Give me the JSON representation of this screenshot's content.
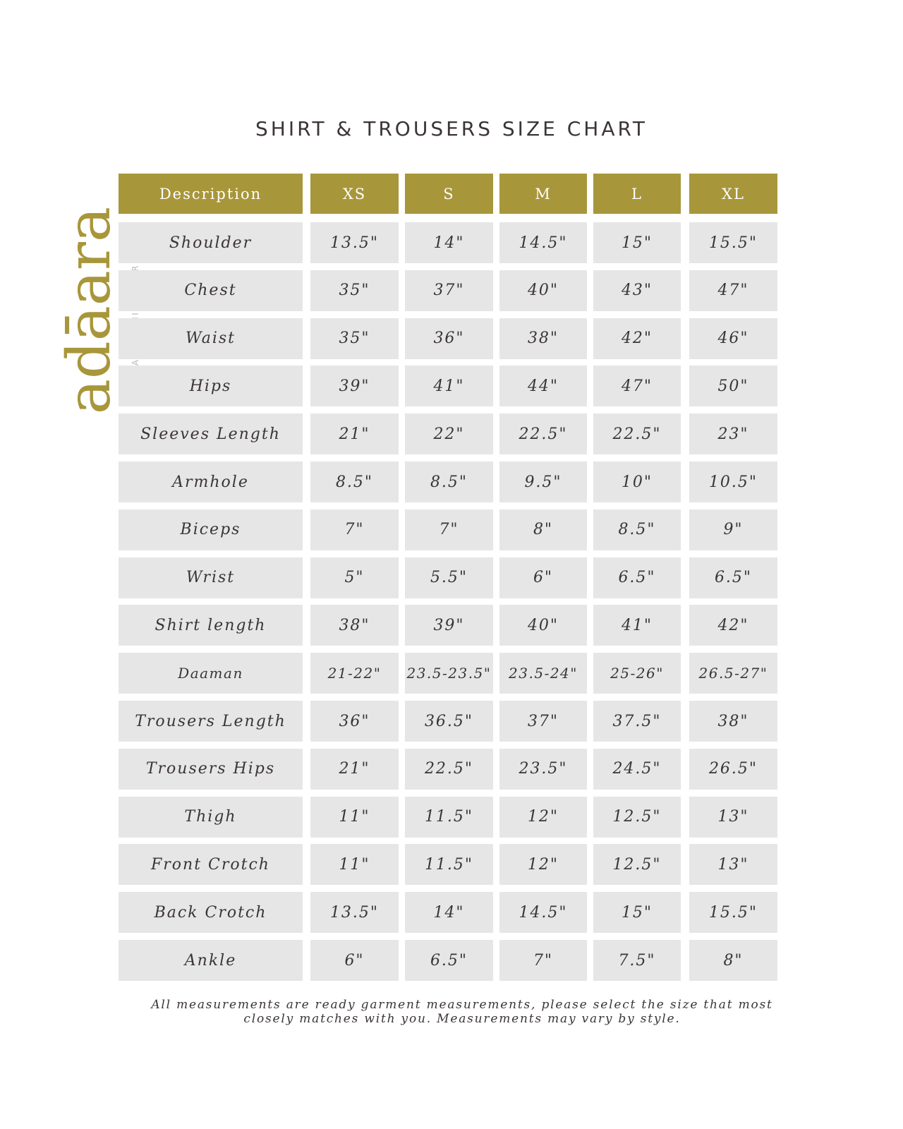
{
  "title": "SHIRT & TROUSERS SIZE CHART",
  "brand": {
    "name": "adāara",
    "tagline": "AN ETHNIC EMPIRE",
    "color": "#a8963a"
  },
  "colors": {
    "header_bg": "#a8963a",
    "cell_bg": "#e6e6e6",
    "text": "#3b3535"
  },
  "table": {
    "headers": [
      "Description",
      "XS",
      "S",
      "M",
      "L",
      "XL"
    ],
    "rows": [
      [
        "Shoulder",
        "13.5\"",
        "14\"",
        "14.5\"",
        "15\"",
        "15.5\""
      ],
      [
        "Chest",
        "35\"",
        "37\"",
        "40\"",
        "43\"",
        "47\""
      ],
      [
        "Waist",
        "35\"",
        "36\"",
        "38\"",
        "42\"",
        "46\""
      ],
      [
        "Hips",
        "39\"",
        "41\"",
        "44\"",
        "47\"",
        "50\""
      ],
      [
        "Sleeves Length",
        "21\"",
        "22\"",
        "22.5\"",
        "22.5\"",
        "23\""
      ],
      [
        "Armhole",
        "8.5\"",
        "8.5\"",
        "9.5\"",
        "10\"",
        "10.5\""
      ],
      [
        "Biceps",
        "7\"",
        "7\"",
        "8\"",
        "8.5\"",
        "9\""
      ],
      [
        "Wrist",
        "5\"",
        "5.5\"",
        "6\"",
        "6.5\"",
        "6.5\""
      ],
      [
        "Shirt length",
        "38\"",
        "39\"",
        "40\"",
        "41\"",
        "42\""
      ],
      [
        "Daaman",
        "21-22\"",
        "23.5-23.5\"",
        "23.5-24\"",
        "25-26\"",
        "26.5-27\""
      ],
      [
        "Trousers Length",
        "36\"",
        "36.5\"",
        "37\"",
        "37.5\"",
        "38\""
      ],
      [
        "Trousers Hips",
        "21\"",
        "22.5\"",
        "23.5\"",
        "24.5\"",
        "26.5\""
      ],
      [
        "Thigh",
        "11\"",
        "11.5\"",
        "12\"",
        "12.5\"",
        "13\""
      ],
      [
        "Front Crotch",
        "11\"",
        "11.5\"",
        "12\"",
        "12.5\"",
        "13\""
      ],
      [
        "Back Crotch",
        "13.5\"",
        "14\"",
        "14.5\"",
        "15\"",
        "15.5\""
      ],
      [
        "Ankle",
        "6\"",
        "6.5\"",
        "7\"",
        "7.5\"",
        "8\""
      ]
    ]
  },
  "footer": {
    "line1": "All measurements are ready garment measurements, please select the size that most",
    "line2": "closely matches with you. Measurements may vary by style."
  }
}
